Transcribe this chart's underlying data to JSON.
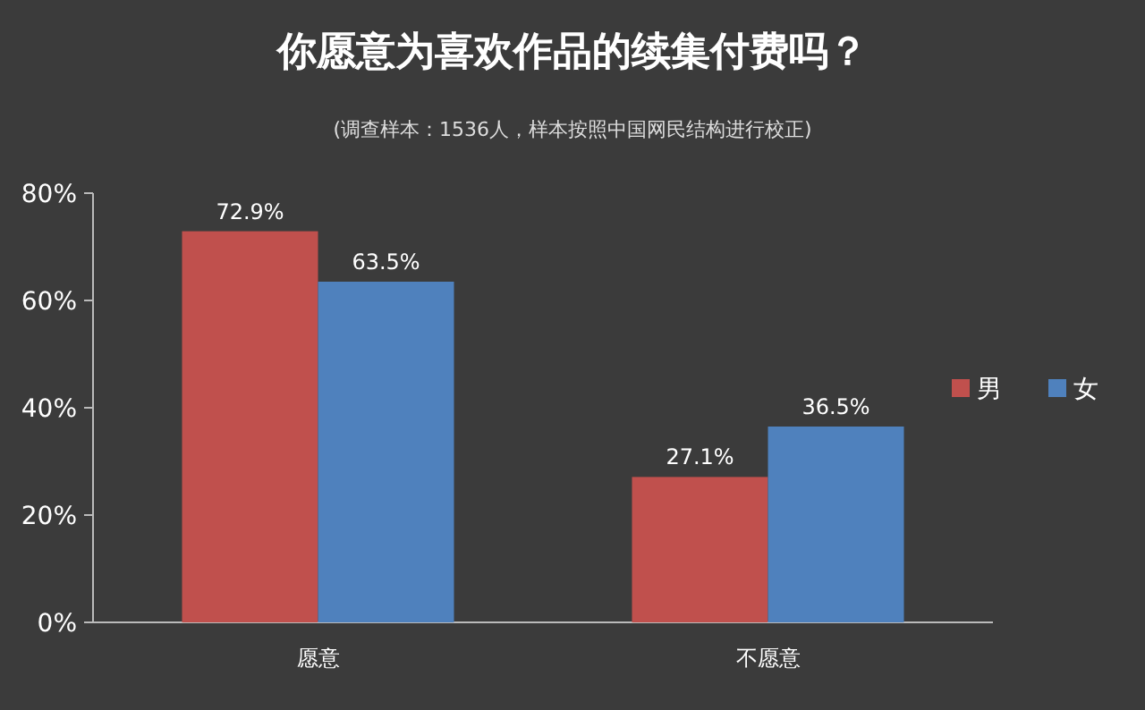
{
  "chart_data": {
    "type": "bar",
    "title": "你愿意为喜欢作品的续集付费吗？",
    "subtitle": "(调查样本：1536人，样本按照中国网民结构进行校正)",
    "categories": [
      "愿意",
      "不愿意"
    ],
    "series": [
      {
        "name": "男",
        "color": "#c0504d",
        "values": [
          72.9,
          27.1
        ],
        "value_labels": [
          "72.9%",
          "27.1%"
        ]
      },
      {
        "name": "女",
        "color": "#4f81bd",
        "values": [
          63.5,
          36.5
        ],
        "value_labels": [
          "63.5%",
          "36.5%"
        ]
      }
    ],
    "ylim": [
      0,
      80
    ],
    "yticks": [
      {
        "value": 0,
        "label": "0%"
      },
      {
        "value": 20,
        "label": "20%"
      },
      {
        "value": 40,
        "label": "40%"
      },
      {
        "value": 60,
        "label": "60%"
      },
      {
        "value": 80,
        "label": "80%"
      }
    ],
    "legend": "right",
    "grid": false
  }
}
